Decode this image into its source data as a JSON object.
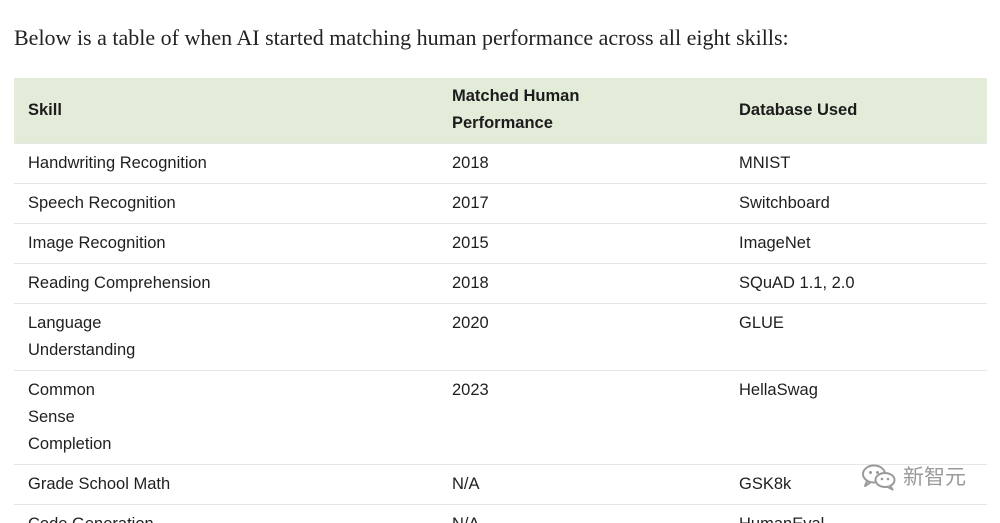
{
  "intro": "Below is a table of when AI started matching human performance across all eight skills:",
  "table": {
    "headers": [
      "Skill",
      "Matched Human Performance",
      "Database Used"
    ],
    "rows": [
      [
        "Handwriting Recognition",
        "2018",
        "MNIST"
      ],
      [
        "Speech Recognition",
        "2017",
        "Switchboard"
      ],
      [
        "Image Recognition",
        "2015",
        "ImageNet"
      ],
      [
        "Reading Comprehension",
        "2018",
        "SQuAD 1.1, 2.0"
      ],
      [
        "Language Understanding",
        "2020",
        "GLUE"
      ],
      [
        "Common Sense Completion",
        "2023",
        "HellaSwag"
      ],
      [
        "Grade School Math",
        "N/A",
        "GSK8k"
      ],
      [
        "Code Generation",
        "N/A",
        "HumanEval"
      ]
    ]
  },
  "watermark": {
    "icon": "wechat-icon",
    "text": "新智元"
  },
  "colors": {
    "header_background": "#e3ecd9",
    "row_divider": "#e6e6e6",
    "text": "#1f1f1f",
    "watermark": "#9a9a9a"
  }
}
